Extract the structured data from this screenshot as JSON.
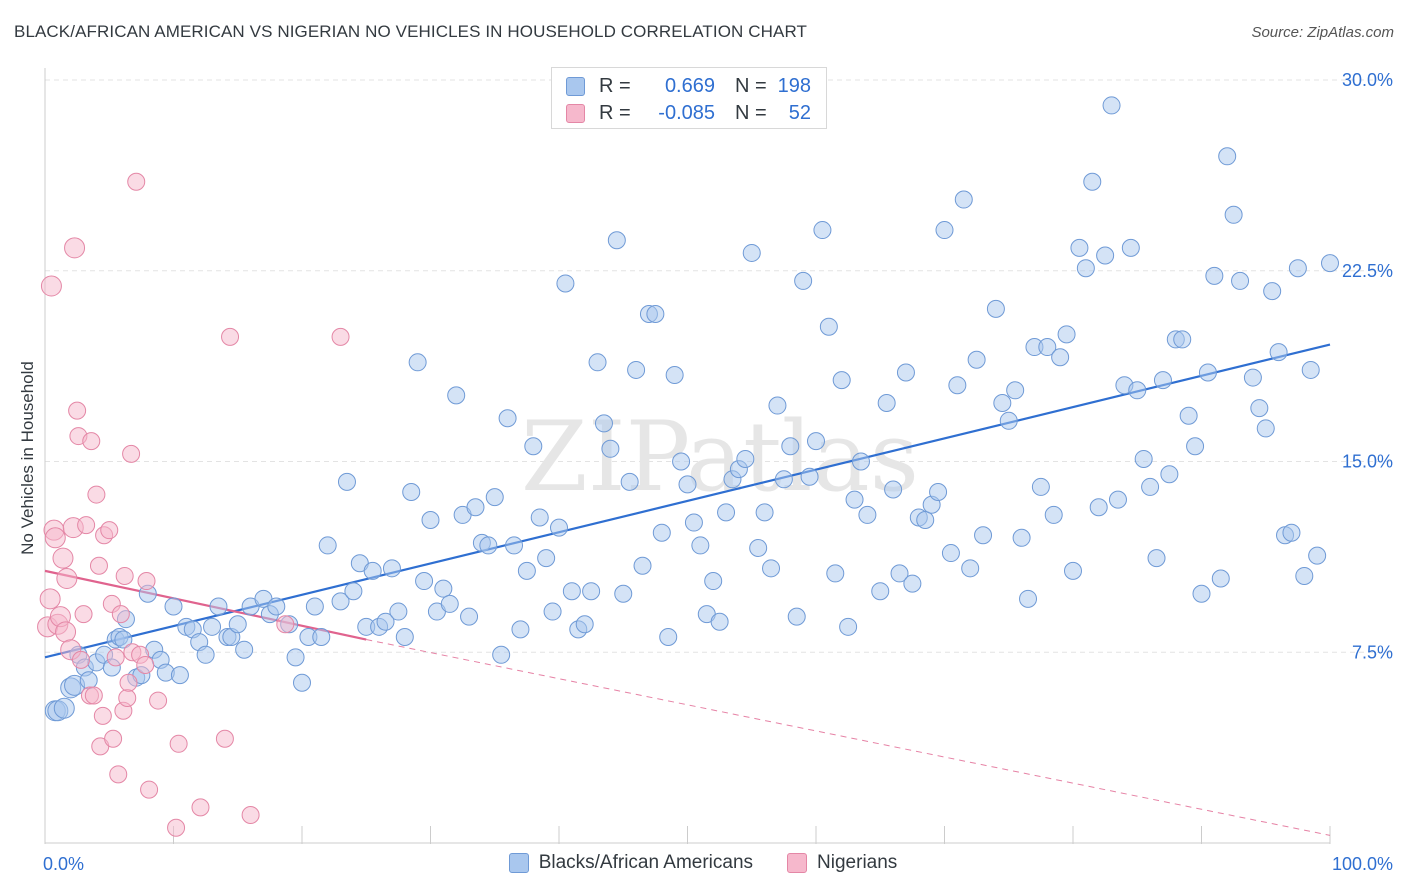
{
  "title": "BLACK/AFRICAN AMERICAN VS NIGERIAN NO VEHICLES IN HOUSEHOLD CORRELATION CHART",
  "source": "Source: ZipAtlas.com",
  "watermark": "ZIPatlas",
  "legend_stats": [
    {
      "r_label": "R =",
      "r_value": "0.669",
      "n_label": "N =",
      "n_value": "198",
      "color": "#a9c7ee",
      "border": "#6f9ad6"
    },
    {
      "r_label": "R =",
      "r_value": "-0.085",
      "n_label": "N =",
      "n_value": "52",
      "color": "#f6b8cc",
      "border": "#e487a6"
    }
  ],
  "chart_data": {
    "type": "scatter",
    "ylabel": "No Vehicles in Household",
    "xlim": [
      0,
      100
    ],
    "ylim": [
      0,
      30
    ],
    "y_ticks": [
      7.5,
      15.0,
      22.5,
      30.0
    ],
    "y_tick_labels": [
      "7.5%",
      "15.0%",
      "22.5%",
      "30.0%"
    ],
    "x_tick_labels": [
      "0.0%",
      "100.0%"
    ],
    "grid": "horizontal dashed",
    "legend_placement": "bottom-center",
    "series": [
      {
        "name": "Blacks/African Americans",
        "color": "#a9c7ee",
        "edge": "#6f9ad6",
        "trend": {
          "x": [
            0,
            100
          ],
          "y": [
            7.3,
            19.6
          ],
          "color": "#2f6fd1"
        },
        "points": [
          [
            0.8,
            5.2
          ],
          [
            1.0,
            5.2
          ],
          [
            1.5,
            5.3
          ],
          [
            2.0,
            6.1
          ],
          [
            2.3,
            6.2
          ],
          [
            2.6,
            7.4
          ],
          [
            3.1,
            6.9
          ],
          [
            3.4,
            6.4
          ],
          [
            4.0,
            7.1
          ],
          [
            4.6,
            7.4
          ],
          [
            5.2,
            6.9
          ],
          [
            5.5,
            8.0
          ],
          [
            5.8,
            8.1
          ],
          [
            6.1,
            8.0
          ],
          [
            6.3,
            8.8
          ],
          [
            7.1,
            6.5
          ],
          [
            7.5,
            6.6
          ],
          [
            8.0,
            9.8
          ],
          [
            8.5,
            7.6
          ],
          [
            9.0,
            7.2
          ],
          [
            9.4,
            6.7
          ],
          [
            10.0,
            9.3
          ],
          [
            10.5,
            6.6
          ],
          [
            11.0,
            8.5
          ],
          [
            11.5,
            8.4
          ],
          [
            12.0,
            7.9
          ],
          [
            12.5,
            7.4
          ],
          [
            13.0,
            8.5
          ],
          [
            13.5,
            9.3
          ],
          [
            14.2,
            8.1
          ],
          [
            14.5,
            8.1
          ],
          [
            15.0,
            8.6
          ],
          [
            15.5,
            7.6
          ],
          [
            16.0,
            9.3
          ],
          [
            17.0,
            9.6
          ],
          [
            17.5,
            9.0
          ],
          [
            18.0,
            9.3
          ],
          [
            19.0,
            8.6
          ],
          [
            19.5,
            7.3
          ],
          [
            20.0,
            6.3
          ],
          [
            20.5,
            8.1
          ],
          [
            21.0,
            9.3
          ],
          [
            21.5,
            8.1
          ],
          [
            22.0,
            11.7
          ],
          [
            23.0,
            9.5
          ],
          [
            23.5,
            14.2
          ],
          [
            24.0,
            9.9
          ],
          [
            24.5,
            11.0
          ],
          [
            25.0,
            8.5
          ],
          [
            25.5,
            10.7
          ],
          [
            26.0,
            8.5
          ],
          [
            26.5,
            8.7
          ],
          [
            27.0,
            10.8
          ],
          [
            27.5,
            9.1
          ],
          [
            28.0,
            8.1
          ],
          [
            28.5,
            13.8
          ],
          [
            29.0,
            18.9
          ],
          [
            29.5,
            10.3
          ],
          [
            30.0,
            12.7
          ],
          [
            30.5,
            9.1
          ],
          [
            31.0,
            10.0
          ],
          [
            31.5,
            9.4
          ],
          [
            32.0,
            17.6
          ],
          [
            32.5,
            12.9
          ],
          [
            33.0,
            8.9
          ],
          [
            33.5,
            13.2
          ],
          [
            34.0,
            11.8
          ],
          [
            34.5,
            11.7
          ],
          [
            35.0,
            13.6
          ],
          [
            35.5,
            7.4
          ],
          [
            36.0,
            16.7
          ],
          [
            36.5,
            11.7
          ],
          [
            37.0,
            8.4
          ],
          [
            37.5,
            10.7
          ],
          [
            38.0,
            15.6
          ],
          [
            38.5,
            12.8
          ],
          [
            39.0,
            11.2
          ],
          [
            39.5,
            9.1
          ],
          [
            40.0,
            12.4
          ],
          [
            40.5,
            22.0
          ],
          [
            41.0,
            9.9
          ],
          [
            41.5,
            8.4
          ],
          [
            42.0,
            8.6
          ],
          [
            42.5,
            9.9
          ],
          [
            43.0,
            18.9
          ],
          [
            43.5,
            16.5
          ],
          [
            44.0,
            15.5
          ],
          [
            44.5,
            23.7
          ],
          [
            45.0,
            9.8
          ],
          [
            45.5,
            14.2
          ],
          [
            46.0,
            18.6
          ],
          [
            46.5,
            10.9
          ],
          [
            47.0,
            20.8
          ],
          [
            47.5,
            20.8
          ],
          [
            48.0,
            12.2
          ],
          [
            48.5,
            8.1
          ],
          [
            49.0,
            18.4
          ],
          [
            49.5,
            15.0
          ],
          [
            50.0,
            14.1
          ],
          [
            50.5,
            12.6
          ],
          [
            51.0,
            11.7
          ],
          [
            51.5,
            9.0
          ],
          [
            52.0,
            10.3
          ],
          [
            52.5,
            8.7
          ],
          [
            53.0,
            13.0
          ],
          [
            53.5,
            14.3
          ],
          [
            54.0,
            14.7
          ],
          [
            54.5,
            15.1
          ],
          [
            55.0,
            23.2
          ],
          [
            55.5,
            11.6
          ],
          [
            56.0,
            13.0
          ],
          [
            56.5,
            10.8
          ],
          [
            57.0,
            17.2
          ],
          [
            57.5,
            14.3
          ],
          [
            58.0,
            15.6
          ],
          [
            58.5,
            8.9
          ],
          [
            59.0,
            22.1
          ],
          [
            59.5,
            14.4
          ],
          [
            60.0,
            15.8
          ],
          [
            60.5,
            24.1
          ],
          [
            61.0,
            20.3
          ],
          [
            61.5,
            10.6
          ],
          [
            62.0,
            18.2
          ],
          [
            62.5,
            8.5
          ],
          [
            63.0,
            13.5
          ],
          [
            63.5,
            15.0
          ],
          [
            64.0,
            12.9
          ],
          [
            65.0,
            9.9
          ],
          [
            65.5,
            17.3
          ],
          [
            66.0,
            13.9
          ],
          [
            66.5,
            10.6
          ],
          [
            67.0,
            18.5
          ],
          [
            67.5,
            10.2
          ],
          [
            68.0,
            12.8
          ],
          [
            68.5,
            12.7
          ],
          [
            69.0,
            13.3
          ],
          [
            69.5,
            13.8
          ],
          [
            70.0,
            24.1
          ],
          [
            70.5,
            11.4
          ],
          [
            71.0,
            18.0
          ],
          [
            71.5,
            25.3
          ],
          [
            72.0,
            10.8
          ],
          [
            72.5,
            19.0
          ],
          [
            73.0,
            12.1
          ],
          [
            74.0,
            21.0
          ],
          [
            74.5,
            17.3
          ],
          [
            75.0,
            16.6
          ],
          [
            75.5,
            17.8
          ],
          [
            76.0,
            12.0
          ],
          [
            76.5,
            9.6
          ],
          [
            77.0,
            19.5
          ],
          [
            77.5,
            14.0
          ],
          [
            78.0,
            19.5
          ],
          [
            78.5,
            12.9
          ],
          [
            79.0,
            19.1
          ],
          [
            79.5,
            20.0
          ],
          [
            80.0,
            10.7
          ],
          [
            80.5,
            23.4
          ],
          [
            81.0,
            22.6
          ],
          [
            81.5,
            26.0
          ],
          [
            82.0,
            13.2
          ],
          [
            82.5,
            23.1
          ],
          [
            83.0,
            29.0
          ],
          [
            83.5,
            13.5
          ],
          [
            84.0,
            18.0
          ],
          [
            84.5,
            23.4
          ],
          [
            85.0,
            17.8
          ],
          [
            85.5,
            15.1
          ],
          [
            86.0,
            14.0
          ],
          [
            86.5,
            11.2
          ],
          [
            87.0,
            18.2
          ],
          [
            87.5,
            14.5
          ],
          [
            88.0,
            19.8
          ],
          [
            88.5,
            19.8
          ],
          [
            89.0,
            16.8
          ],
          [
            89.5,
            15.6
          ],
          [
            90.0,
            9.8
          ],
          [
            90.5,
            18.5
          ],
          [
            91.0,
            22.3
          ],
          [
            91.5,
            10.4
          ],
          [
            92.0,
            27.0
          ],
          [
            92.5,
            24.7
          ],
          [
            93.0,
            22.1
          ],
          [
            94.0,
            18.3
          ],
          [
            94.5,
            17.1
          ],
          [
            95.0,
            16.3
          ],
          [
            95.5,
            21.7
          ],
          [
            96.0,
            19.3
          ],
          [
            96.5,
            12.1
          ],
          [
            97.0,
            12.2
          ],
          [
            97.5,
            22.6
          ],
          [
            98.0,
            10.5
          ],
          [
            98.5,
            18.6
          ],
          [
            99.0,
            11.3
          ],
          [
            100.0,
            22.8
          ]
        ]
      },
      {
        "name": "Nigerians",
        "color": "#f6b8cc",
        "edge": "#e487a6",
        "trend": {
          "x": [
            0,
            25
          ],
          "y": [
            10.7,
            8.0
          ],
          "color": "#e0638e"
        },
        "trend_ext": {
          "x": [
            25,
            100
          ],
          "y": [
            8.0,
            0.3
          ]
        },
        "points": [
          [
            0.2,
            8.5
          ],
          [
            0.4,
            9.6
          ],
          [
            0.5,
            21.9
          ],
          [
            0.7,
            12.3
          ],
          [
            0.8,
            12.0
          ],
          [
            1.0,
            8.6
          ],
          [
            1.2,
            8.9
          ],
          [
            1.4,
            11.2
          ],
          [
            1.6,
            8.3
          ],
          [
            1.7,
            10.4
          ],
          [
            2.0,
            7.6
          ],
          [
            2.2,
            12.4
          ],
          [
            2.3,
            23.4
          ],
          [
            2.5,
            17.0
          ],
          [
            2.6,
            16.0
          ],
          [
            2.8,
            7.2
          ],
          [
            3.0,
            9.0
          ],
          [
            3.2,
            12.5
          ],
          [
            3.5,
            5.8
          ],
          [
            3.6,
            15.8
          ],
          [
            3.8,
            5.8
          ],
          [
            4.0,
            13.7
          ],
          [
            4.2,
            10.9
          ],
          [
            4.3,
            3.8
          ],
          [
            4.5,
            5.0
          ],
          [
            4.6,
            12.1
          ],
          [
            5.0,
            12.3
          ],
          [
            5.2,
            9.4
          ],
          [
            5.3,
            4.1
          ],
          [
            5.5,
            7.3
          ],
          [
            5.7,
            2.7
          ],
          [
            5.9,
            9.0
          ],
          [
            6.1,
            5.2
          ],
          [
            6.2,
            10.5
          ],
          [
            6.4,
            5.7
          ],
          [
            6.5,
            6.3
          ],
          [
            6.7,
            15.3
          ],
          [
            6.8,
            7.5
          ],
          [
            7.1,
            26.0
          ],
          [
            7.4,
            7.4
          ],
          [
            7.8,
            7.0
          ],
          [
            7.9,
            10.3
          ],
          [
            8.1,
            2.1
          ],
          [
            8.8,
            5.6
          ],
          [
            10.2,
            0.6
          ],
          [
            10.4,
            3.9
          ],
          [
            12.1,
            1.4
          ],
          [
            14.0,
            4.1
          ],
          [
            14.4,
            19.9
          ],
          [
            16.0,
            1.1
          ],
          [
            18.7,
            8.6
          ],
          [
            23.0,
            19.9
          ]
        ]
      }
    ]
  }
}
